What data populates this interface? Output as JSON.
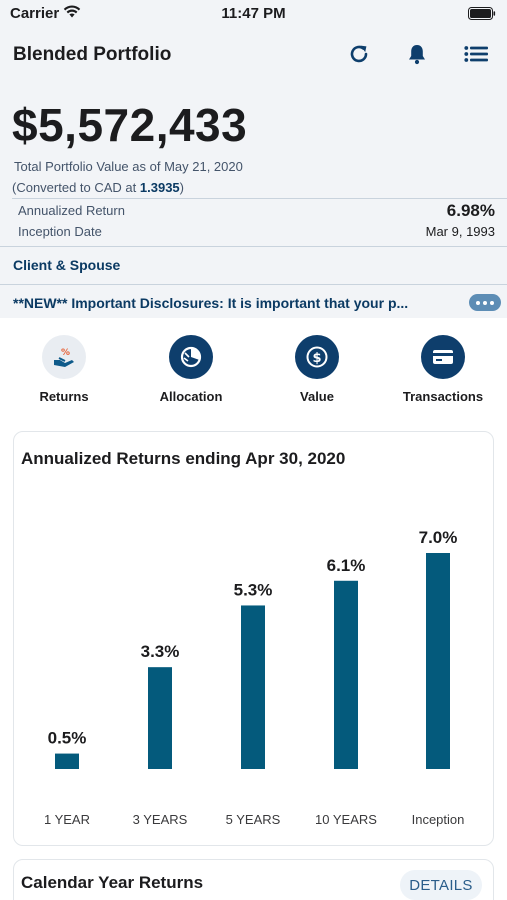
{
  "status_bar": {
    "carrier": "Carrier",
    "time": "11:47 PM"
  },
  "header": {
    "title": "Blended Portfolio",
    "icons": [
      "refresh-icon",
      "bell-icon",
      "menu-list-icon"
    ]
  },
  "portfolio": {
    "total_value": "$5,572,433",
    "total_value_caption": "Total Portfolio Value as of May 21, 2020",
    "conversion_prefix": "(Converted to CAD at ",
    "conversion_rate": "1.3935",
    "conversion_suffix": ")",
    "annualized_return_label": "Annualized Return",
    "annualized_return_value": "6.98%",
    "inception_date_label": "Inception Date",
    "inception_date_value": "Mar 9, 1993"
  },
  "client_row": "Client & Spouse",
  "disclosure_text": "**NEW** Important Disclosures:  It is important that your p...",
  "quick_actions": [
    {
      "label": "Returns",
      "icon": "returns-icon"
    },
    {
      "label": "Allocation",
      "icon": "allocation-icon"
    },
    {
      "label": "Value",
      "icon": "value-icon"
    },
    {
      "label": "Transactions",
      "icon": "transactions-icon"
    }
  ],
  "chart_card": {
    "title": "Annualized Returns ending Apr 30, 2020"
  },
  "chart_data": {
    "type": "bar",
    "title": "Annualized Returns ending Apr 30, 2020",
    "categories": [
      "1 YEAR",
      "3 YEARS",
      "5 YEARS",
      "10 YEARS",
      "Inception"
    ],
    "values": [
      0.5,
      3.3,
      5.3,
      6.1,
      7.0
    ],
    "value_labels": [
      "0.5%",
      "3.3%",
      "5.3%",
      "6.1%",
      "7.0%"
    ],
    "xlabel": "",
    "ylabel": "",
    "ylim": [
      0,
      7.0
    ],
    "grid": false,
    "bar_color": "#045a7c"
  },
  "calendar_card": {
    "title": "Calendar Year Returns",
    "details_label": "DETAILS"
  },
  "colors": {
    "accent": "#0e3e6c",
    "header_bg": "#f2f4f7",
    "bar": "#045a7c"
  }
}
